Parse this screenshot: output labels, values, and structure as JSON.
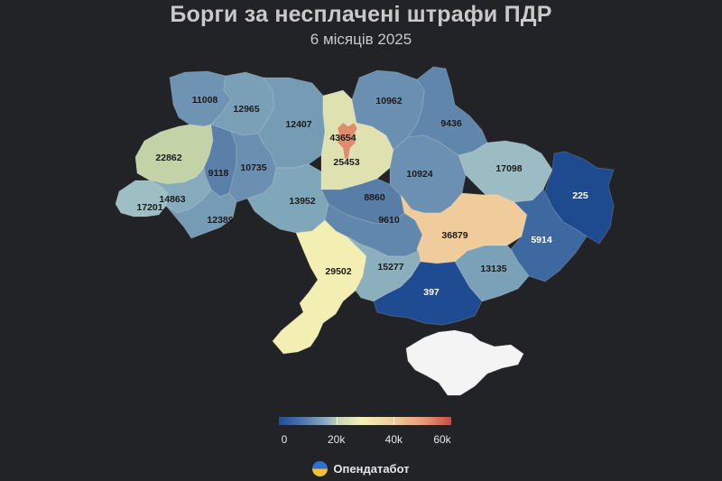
{
  "header": {
    "title": "Борги за несплачені штрафи ПДР",
    "subtitle": "6 місяців 2025"
  },
  "regions": [
    {
      "value": "11008",
      "color": "#6f93b3"
    },
    {
      "value": "12965",
      "color": "#7aa0b7"
    },
    {
      "value": "12407",
      "color": "#769cb5"
    },
    {
      "value": "10962",
      "color": "#6a8fb1"
    },
    {
      "value": "9436",
      "color": "#6186ac"
    },
    {
      "value": "43654",
      "color": "#d8dca8"
    },
    {
      "value": "25453",
      "color": "#dfe2b0"
    },
    {
      "value": "22862",
      "color": "#c3d3a7"
    },
    {
      "value": "9118",
      "color": "#5a7fa8"
    },
    {
      "value": "10735",
      "color": "#6a8fb1"
    },
    {
      "value": "13952",
      "color": "#80a6ba"
    },
    {
      "value": "8860",
      "color": "#587da7"
    },
    {
      "value": "10924",
      "color": "#6b90b1"
    },
    {
      "value": "17098",
      "color": "#9bbcc2"
    },
    {
      "value": "225",
      "color": "#1e4a90"
    },
    {
      "value": "17201",
      "color": "#9dbec3"
    },
    {
      "value": "14863",
      "color": "#86abbc"
    },
    {
      "value": "12389",
      "color": "#759bb5"
    },
    {
      "value": "9610",
      "color": "#6287ad"
    },
    {
      "value": "36879",
      "color": "#f0cb9c"
    },
    {
      "value": "5914",
      "color": "#3e68a0"
    },
    {
      "value": "29502",
      "color": "#f3eeb2"
    },
    {
      "value": "15277",
      "color": "#8cafbe"
    },
    {
      "value": "13135",
      "color": "#7ba1b8"
    },
    {
      "value": "397",
      "color": "#1f4b92"
    }
  ],
  "kyiv_city": {
    "color": "#dd8c6e"
  },
  "crimea": {
    "color": "#f4f4f4"
  },
  "legend": {
    "labels": [
      "0",
      "20k",
      "40k",
      "60k"
    ],
    "ticks": [
      0,
      20000,
      40000,
      60000
    ],
    "max": 60000
  },
  "brand": {
    "name": "Опендатабот",
    "icon": "opendatabot-logo-icon"
  }
}
